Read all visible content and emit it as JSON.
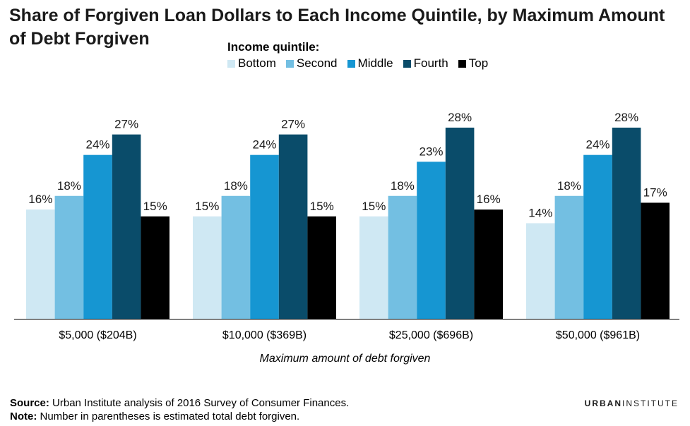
{
  "title": "Share of Forgiven Loan Dollars to Each Income Quintile, by Maximum Amount of Debt Forgiven",
  "legend_title": "Income quintile:",
  "chart_data": {
    "type": "bar",
    "categories": [
      "$5,000 ($204B)",
      "$10,000 ($369B)",
      "$25,000 ($696B)",
      "$50,000 ($961B)"
    ],
    "series": [
      {
        "name": "Bottom",
        "color": "#cfe8f3",
        "values": [
          16,
          15,
          15,
          14
        ],
        "labels": [
          "16%",
          "15%",
          "15%",
          "14%"
        ]
      },
      {
        "name": "Second",
        "color": "#73bfe2",
        "values": [
          18,
          18,
          18,
          18
        ],
        "labels": [
          "18%",
          "18%",
          "18%",
          "18%"
        ]
      },
      {
        "name": "Middle",
        "color": "#1696d2",
        "values": [
          24,
          24,
          23,
          24
        ],
        "labels": [
          "24%",
          "24%",
          "23%",
          "24%"
        ]
      },
      {
        "name": "Fourth",
        "color": "#0a4c6a",
        "values": [
          27,
          27,
          28,
          28
        ],
        "labels": [
          "27%",
          "27%",
          "28%",
          "28%"
        ]
      },
      {
        "name": "Top",
        "color": "#000000",
        "values": [
          15,
          15,
          16,
          17
        ],
        "labels": [
          "15%",
          "15%",
          "16%",
          "17%"
        ]
      }
    ],
    "xlabel": "Maximum amount of debt forgiven",
    "ylabel": "",
    "ylim": [
      0,
      28
    ],
    "grid": false,
    "legend_position": "top"
  },
  "source_label": "Source:",
  "source_text": " Urban Institute analysis of 2016 Survey of Consumer Finances.",
  "note_label": "Note:",
  "note_text": " Number in parentheses is estimated total debt forgiven.",
  "brand_bold": "URBAN",
  "brand_light": "INSTITUTE"
}
